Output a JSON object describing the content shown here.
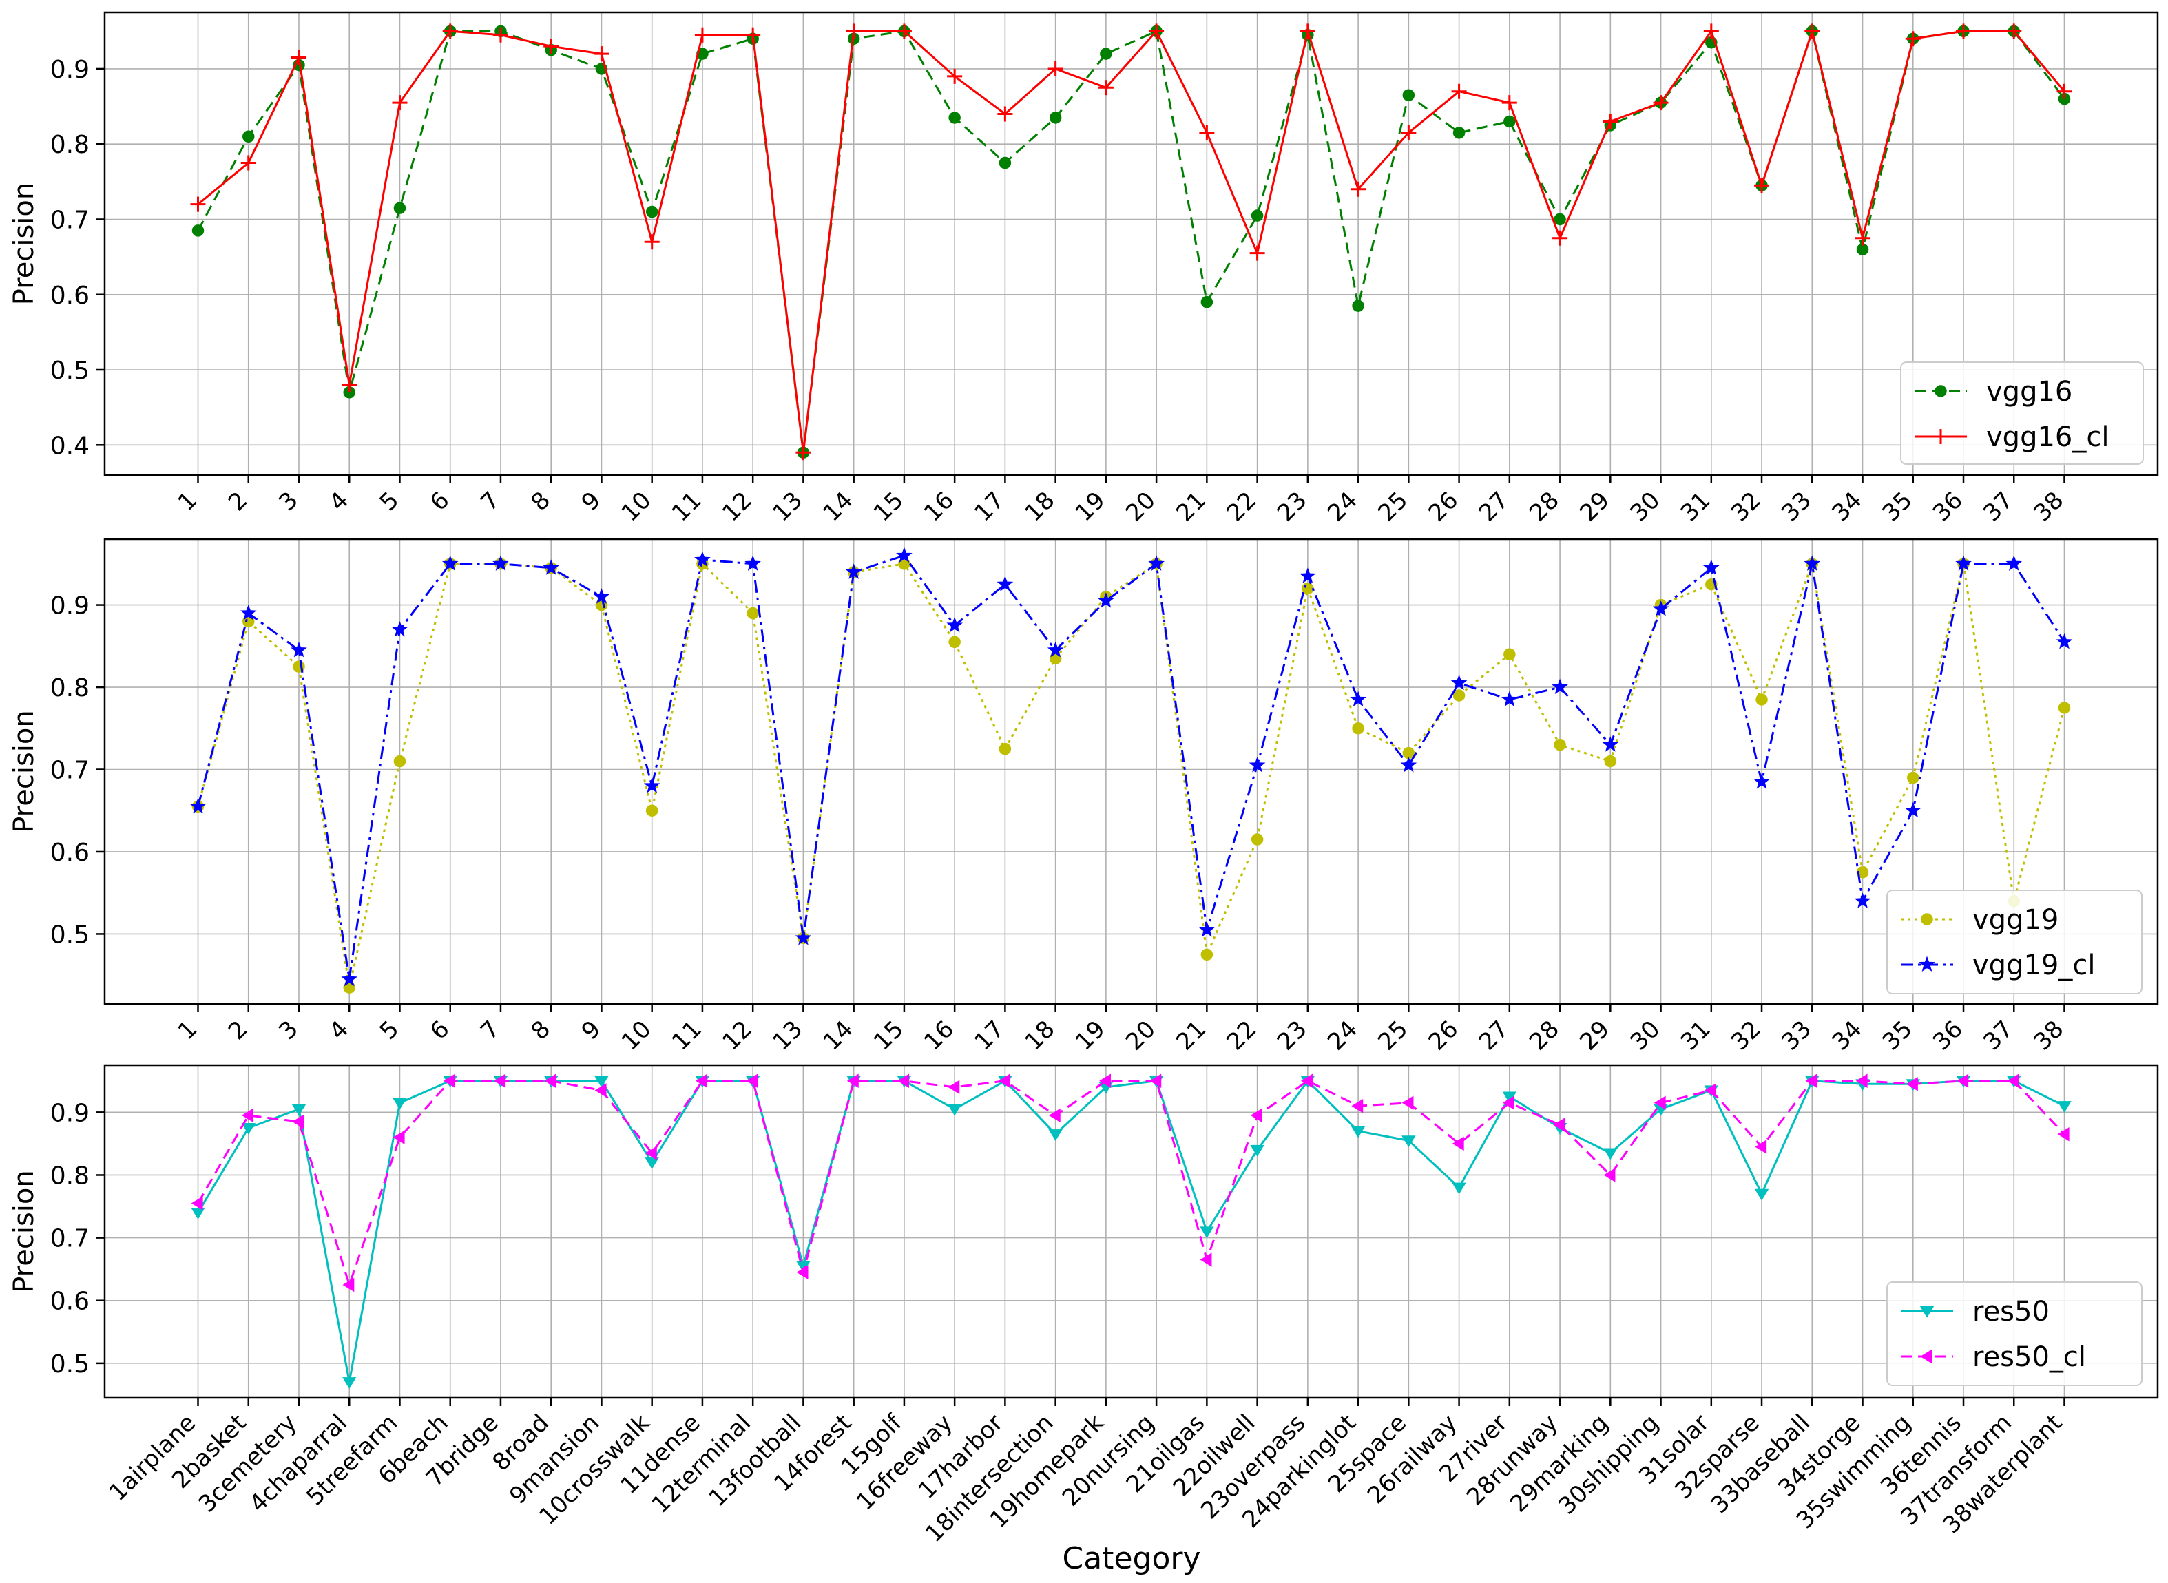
{
  "chart_data": [
    {
      "type": "line",
      "ylabel": "Precision",
      "xlabel": "",
      "ylim": [
        0.36,
        0.975
      ],
      "yticks": [
        0.4,
        0.5,
        0.6,
        0.7,
        0.8,
        0.9
      ],
      "ytick_labels": [
        "0.4",
        "0.5",
        "0.6",
        "0.7",
        "0.8",
        "0.9"
      ],
      "grid": true,
      "legend_position": "bottom-right",
      "xtick_labels": [
        "1",
        "2",
        "3",
        "4",
        "5",
        "6",
        "7",
        "8",
        "9",
        "10",
        "11",
        "12",
        "13",
        "14",
        "15",
        "16",
        "17",
        "18",
        "19",
        "20",
        "21",
        "22",
        "23",
        "24",
        "25",
        "26",
        "27",
        "28",
        "29",
        "30",
        "31",
        "32",
        "33",
        "34",
        "35",
        "36",
        "37",
        "38"
      ],
      "series": [
        {
          "name": "vgg16",
          "color": "#008000",
          "dash": "dashed",
          "marker": "circle",
          "values": [
            0.685,
            0.81,
            0.905,
            0.47,
            0.715,
            0.95,
            0.95,
            0.925,
            0.9,
            0.71,
            0.92,
            0.94,
            0.39,
            0.94,
            0.95,
            0.835,
            0.775,
            0.835,
            0.92,
            0.95,
            0.59,
            0.705,
            0.945,
            0.585,
            0.865,
            0.815,
            0.83,
            0.7,
            0.825,
            0.855,
            0.935,
            0.745,
            0.95,
            0.66,
            0.94,
            0.95,
            0.95,
            0.86
          ]
        },
        {
          "name": "vgg16_cl",
          "color": "#ff0000",
          "dash": "solid",
          "marker": "plus",
          "values": [
            0.72,
            0.775,
            0.915,
            0.48,
            0.855,
            0.95,
            0.945,
            0.93,
            0.92,
            0.67,
            0.945,
            0.945,
            0.39,
            0.95,
            0.95,
            0.89,
            0.84,
            0.9,
            0.875,
            0.95,
            0.815,
            0.655,
            0.95,
            0.74,
            0.815,
            0.87,
            0.855,
            0.675,
            0.83,
            0.855,
            0.95,
            0.745,
            0.95,
            0.675,
            0.94,
            0.95,
            0.95,
            0.87
          ]
        }
      ]
    },
    {
      "type": "line",
      "ylabel": "Precision",
      "xlabel": "",
      "ylim": [
        0.415,
        0.98
      ],
      "yticks": [
        0.5,
        0.6,
        0.7,
        0.8,
        0.9
      ],
      "ytick_labels": [
        "0.5",
        "0.6",
        "0.7",
        "0.8",
        "0.9"
      ],
      "grid": true,
      "legend_position": "bottom-right",
      "xtick_labels": [
        "1",
        "2",
        "3",
        "4",
        "5",
        "6",
        "7",
        "8",
        "9",
        "10",
        "11",
        "12",
        "13",
        "14",
        "15",
        "16",
        "17",
        "18",
        "19",
        "20",
        "21",
        "22",
        "23",
        "24",
        "25",
        "26",
        "27",
        "28",
        "29",
        "30",
        "31",
        "32",
        "33",
        "34",
        "35",
        "36",
        "37",
        "38"
      ],
      "series": [
        {
          "name": "vgg19",
          "color": "#bfbf00",
          "dash": "dotted",
          "marker": "circle",
          "values": [
            0.655,
            0.88,
            0.825,
            0.435,
            0.71,
            0.95,
            0.95,
            0.945,
            0.9,
            0.65,
            0.95,
            0.89,
            0.495,
            0.94,
            0.95,
            0.855,
            0.725,
            0.835,
            0.91,
            0.95,
            0.475,
            0.615,
            0.92,
            0.75,
            0.72,
            0.79,
            0.84,
            0.73,
            0.71,
            0.9,
            0.925,
            0.785,
            0.95,
            0.575,
            0.69,
            0.95,
            0.54,
            0.775
          ]
        },
        {
          "name": "vgg19_cl",
          "color": "#0000ff",
          "dash": "dashdot",
          "marker": "star",
          "values": [
            0.655,
            0.89,
            0.845,
            0.445,
            0.87,
            0.95,
            0.95,
            0.945,
            0.91,
            0.68,
            0.955,
            0.95,
            0.495,
            0.94,
            0.96,
            0.875,
            0.925,
            0.845,
            0.905,
            0.95,
            0.505,
            0.705,
            0.935,
            0.785,
            0.705,
            0.805,
            0.785,
            0.8,
            0.73,
            0.895,
            0.945,
            0.685,
            0.95,
            0.54,
            0.65,
            0.95,
            0.95,
            0.855
          ]
        }
      ]
    },
    {
      "type": "line",
      "ylabel": "Precision",
      "xlabel": "Category",
      "ylim": [
        0.445,
        0.975
      ],
      "yticks": [
        0.5,
        0.6,
        0.7,
        0.8,
        0.9
      ],
      "ytick_labels": [
        "0.5",
        "0.6",
        "0.7",
        "0.8",
        "0.9"
      ],
      "grid": true,
      "legend_position": "bottom-right",
      "xtick_labels": [
        "1airplane",
        "2basket",
        "3cemetery",
        "4chaparral",
        "5treefarm",
        "6beach",
        "7bridge",
        "8road",
        "9mansion",
        "10crosswalk",
        "11dense",
        "12terminal",
        "13football",
        "14forest",
        "15golf",
        "16freeway",
        "17harbor",
        "18intersection",
        "19homepark",
        "20nursing",
        "21oilgas",
        "22oilwell",
        "23overpass",
        "24parkinglot",
        "25space",
        "26railway",
        "27river",
        "28runway",
        "29marking",
        "30shipping",
        "31solar",
        "32sparse",
        "33baseball",
        "34storge",
        "35swimming",
        "36tennis",
        "37transform",
        "38waterplant"
      ],
      "series": [
        {
          "name": "res50",
          "color": "#00bfbf",
          "dash": "solid",
          "marker": "triangle-down",
          "values": [
            0.74,
            0.875,
            0.905,
            0.47,
            0.915,
            0.95,
            0.95,
            0.95,
            0.95,
            0.82,
            0.95,
            0.95,
            0.655,
            0.95,
            0.95,
            0.905,
            0.95,
            0.865,
            0.94,
            0.95,
            0.71,
            0.84,
            0.95,
            0.87,
            0.855,
            0.78,
            0.925,
            0.875,
            0.835,
            0.905,
            0.935,
            0.77,
            0.95,
            0.945,
            0.945,
            0.95,
            0.95,
            0.91
          ]
        },
        {
          "name": "res50_cl",
          "color": "#ff00ff",
          "dash": "dashed",
          "marker": "triangle-left",
          "values": [
            0.755,
            0.895,
            0.885,
            0.625,
            0.86,
            0.95,
            0.95,
            0.95,
            0.935,
            0.835,
            0.95,
            0.95,
            0.645,
            0.95,
            0.95,
            0.94,
            0.95,
            0.895,
            0.95,
            0.95,
            0.665,
            0.895,
            0.95,
            0.91,
            0.915,
            0.85,
            0.915,
            0.88,
            0.8,
            0.915,
            0.935,
            0.845,
            0.95,
            0.95,
            0.945,
            0.95,
            0.95,
            0.865
          ]
        }
      ]
    }
  ]
}
